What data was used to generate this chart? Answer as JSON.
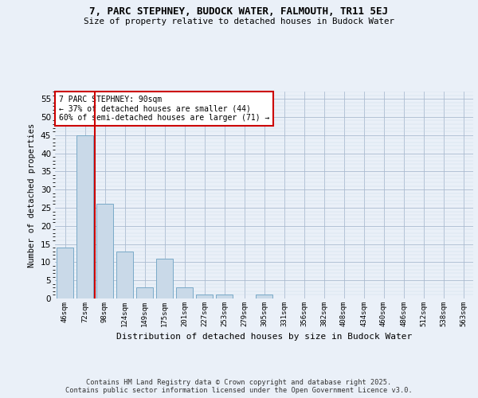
{
  "title1": "7, PARC STEPHNEY, BUDOCK WATER, FALMOUTH, TR11 5EJ",
  "title2": "Size of property relative to detached houses in Budock Water",
  "xlabel": "Distribution of detached houses by size in Budock Water",
  "ylabel": "Number of detached properties",
  "categories": [
    "46sqm",
    "72sqm",
    "98sqm",
    "124sqm",
    "149sqm",
    "175sqm",
    "201sqm",
    "227sqm",
    "253sqm",
    "279sqm",
    "305sqm",
    "331sqm",
    "356sqm",
    "382sqm",
    "408sqm",
    "434sqm",
    "460sqm",
    "486sqm",
    "512sqm",
    "538sqm",
    "563sqm"
  ],
  "values": [
    14,
    45,
    26,
    13,
    3,
    11,
    3,
    1,
    1,
    0,
    1,
    0,
    0,
    0,
    0,
    0,
    0,
    0,
    0,
    0,
    0
  ],
  "bar_color": "#c9d9e8",
  "bar_edge_color": "#7aaac8",
  "subject_line_color": "#cc0000",
  "subject_bar_idx": 1,
  "ylim": [
    0,
    57
  ],
  "yticks": [
    0,
    5,
    10,
    15,
    20,
    25,
    30,
    35,
    40,
    45,
    50,
    55
  ],
  "annotation_text": "7 PARC STEPHNEY: 90sqm\n← 37% of detached houses are smaller (44)\n60% of semi-detached houses are larger (71) →",
  "annotation_box_color": "#ffffff",
  "annotation_box_edge": "#cc0000",
  "footer1": "Contains HM Land Registry data © Crown copyright and database right 2025.",
  "footer2": "Contains public sector information licensed under the Open Government Licence v3.0.",
  "bg_color": "#eaf0f8",
  "plot_bg_color": "#eaf0f8"
}
